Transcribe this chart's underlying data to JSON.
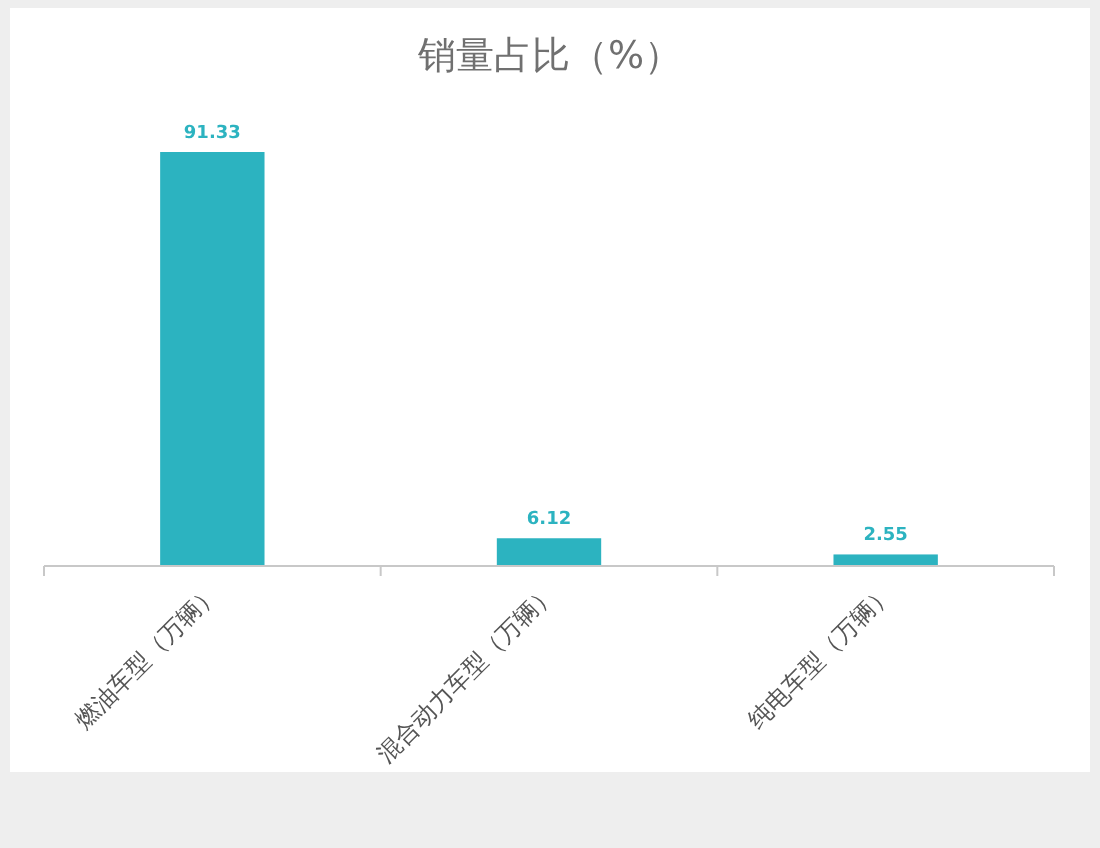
{
  "chart_data": {
    "type": "bar",
    "title": "销量占比（%）",
    "categories": [
      "燃油车型（万辆）",
      "混合动力车型（万辆）",
      "纯电车型（万辆）"
    ],
    "values": [
      91.33,
      6.12,
      2.55
    ],
    "color": "#2cb3c0",
    "data_labels": true
  }
}
